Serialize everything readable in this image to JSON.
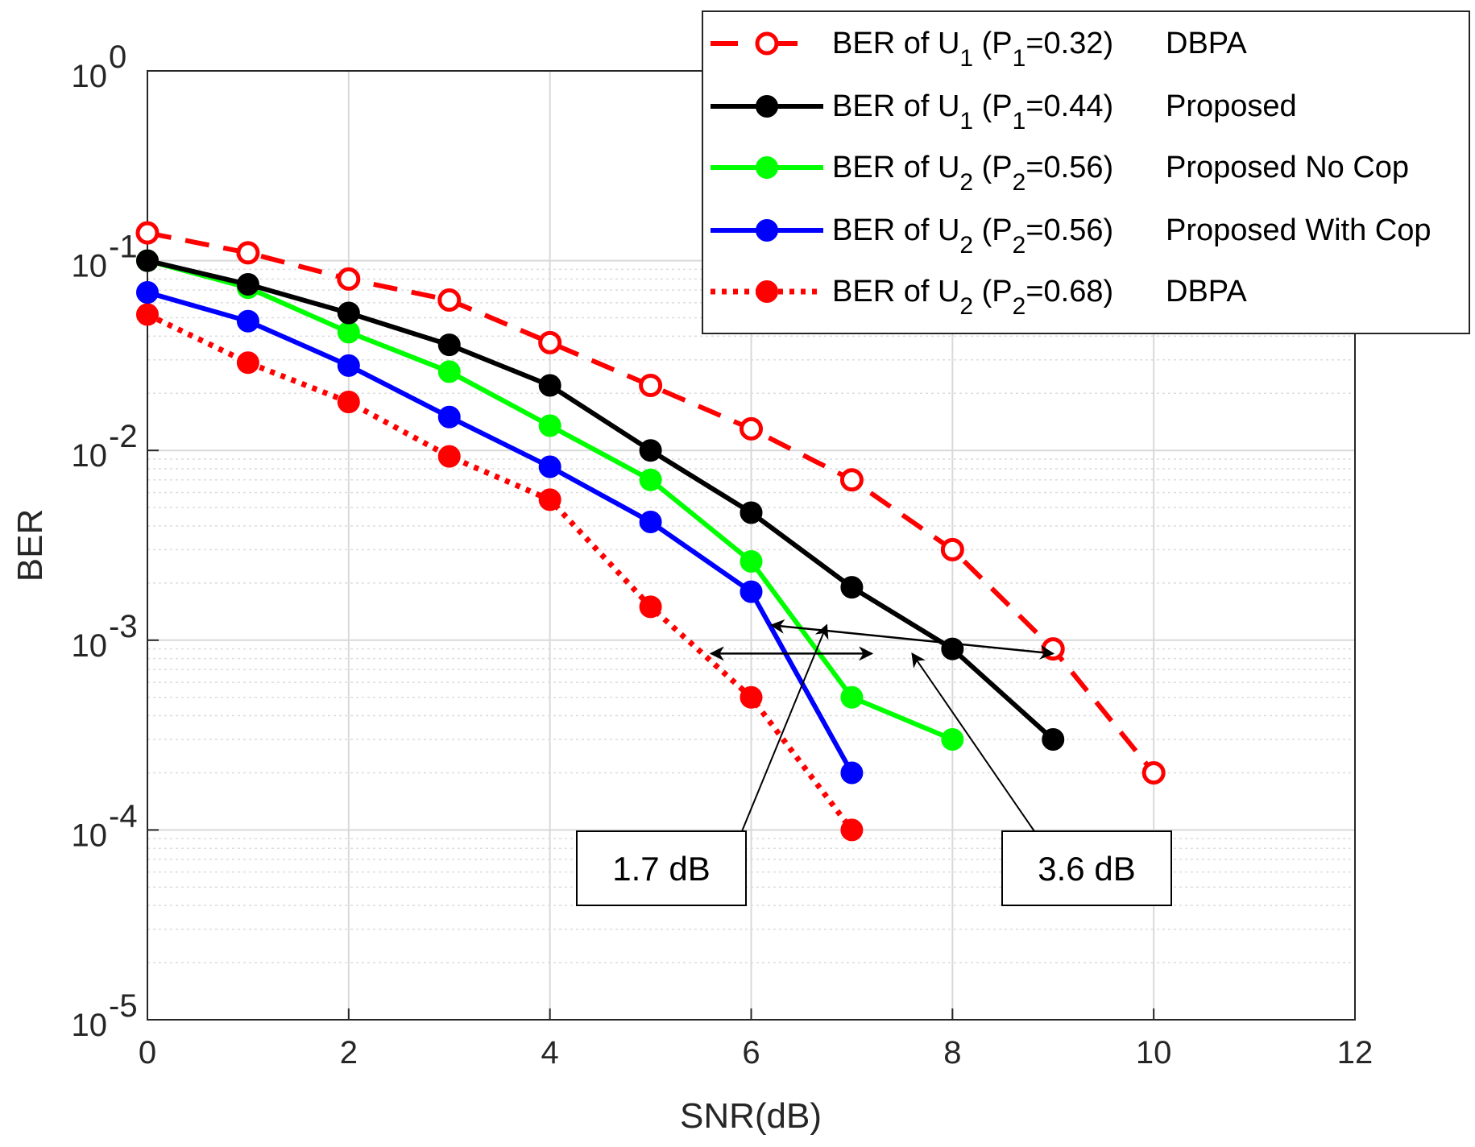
{
  "chart_data": {
    "type": "line",
    "title": "",
    "xlabel": "SNR(dB)",
    "ylabel": "BER",
    "xlim": [
      0,
      12
    ],
    "ylim": [
      1e-05,
      1
    ],
    "yscale": "log",
    "grid": true,
    "legend_position": "top-right",
    "x_ticks": [
      "0",
      "2",
      "4",
      "6",
      "8",
      "10",
      "12"
    ],
    "y_ticks": [
      {
        "base": "10",
        "exp": "0",
        "value": 1
      },
      {
        "base": "10",
        "exp": "-1",
        "value": 0.1
      },
      {
        "base": "10",
        "exp": "-2",
        "value": 0.01
      },
      {
        "base": "10",
        "exp": "-3",
        "value": 0.001
      },
      {
        "base": "10",
        "exp": "-4",
        "value": 0.0001
      },
      {
        "base": "10",
        "exp": "-5",
        "value": 1e-05
      }
    ],
    "series": [
      {
        "name": "BER of U1 (P1=0.32) DBPA",
        "label_parts": {
          "a": "BER of U",
          "user": "1",
          "b": " (P",
          "p": "1",
          "c": "=0.32)",
          "scheme": "DBPA"
        },
        "color": "#ff0000",
        "line": "dashed",
        "marker": "open-circle",
        "x": [
          0,
          1,
          2,
          3,
          4,
          5,
          6,
          7,
          8,
          9,
          10
        ],
        "y": [
          0.14,
          0.11,
          0.08,
          0.062,
          0.037,
          0.022,
          0.013,
          0.007,
          0.003,
          0.0009,
          0.0002
        ]
      },
      {
        "name": "BER of U1 (P1=0.44) Proposed",
        "label_parts": {
          "a": "BER of U",
          "user": "1",
          "b": " (P",
          "p": "1",
          "c": "=0.44)",
          "scheme": "Proposed"
        },
        "color": "#000000",
        "line": "solid",
        "marker": "filled-circle",
        "x": [
          0,
          1,
          2,
          3,
          4,
          5,
          6,
          7,
          8,
          9
        ],
        "y": [
          0.1,
          0.075,
          0.053,
          0.036,
          0.022,
          0.01,
          0.0047,
          0.0019,
          0.0009,
          0.0003
        ]
      },
      {
        "name": "BER of U2 (P2=0.56) Proposed No Cop",
        "label_parts": {
          "a": "BER of U",
          "user": "2",
          "b": " (P",
          "p": "2",
          "c": "=0.56)",
          "scheme": "Proposed No Cop"
        },
        "color": "#00ff00",
        "line": "solid",
        "marker": "filled-circle",
        "x": [
          0,
          1,
          2,
          3,
          4,
          5,
          6,
          7,
          8
        ],
        "y": [
          0.1,
          0.072,
          0.042,
          0.026,
          0.0135,
          0.007,
          0.0026,
          0.0005,
          0.0003
        ]
      },
      {
        "name": "BER of U2 (P2=0.56) Proposed With Cop",
        "label_parts": {
          "a": "BER of U",
          "user": "2",
          "b": " (P",
          "p": "2",
          "c": "=0.56)",
          "scheme": "Proposed With Cop"
        },
        "color": "#0000ff",
        "line": "solid",
        "marker": "filled-circle",
        "x": [
          0,
          1,
          2,
          3,
          4,
          5,
          6,
          7
        ],
        "y": [
          0.068,
          0.048,
          0.028,
          0.015,
          0.0082,
          0.0042,
          0.0018,
          0.0002
        ]
      },
      {
        "name": "BER of U2 (P2=0.68) DBPA",
        "label_parts": {
          "a": "BER of U",
          "user": "2",
          "b": " (P",
          "p": "2",
          "c": "=0.68)",
          "scheme": "DBPA"
        },
        "color": "#ff0000",
        "line": "dotted",
        "marker": "filled-circle",
        "x": [
          0,
          1,
          2,
          3,
          4,
          5,
          6,
          7
        ],
        "y": [
          0.052,
          0.029,
          0.018,
          0.0093,
          0.0055,
          0.0015,
          0.0005,
          0.0001
        ]
      }
    ],
    "annotations": [
      {
        "text": "1.7 dB",
        "arrow_from": [
          5.6,
          0.00085
        ],
        "arrow_to": [
          7.2,
          0.00085
        ]
      },
      {
        "text": "3.6 dB",
        "arrow_from": [
          6.2,
          0.0012
        ],
        "arrow_to": [
          9.0,
          0.00085
        ]
      }
    ]
  }
}
